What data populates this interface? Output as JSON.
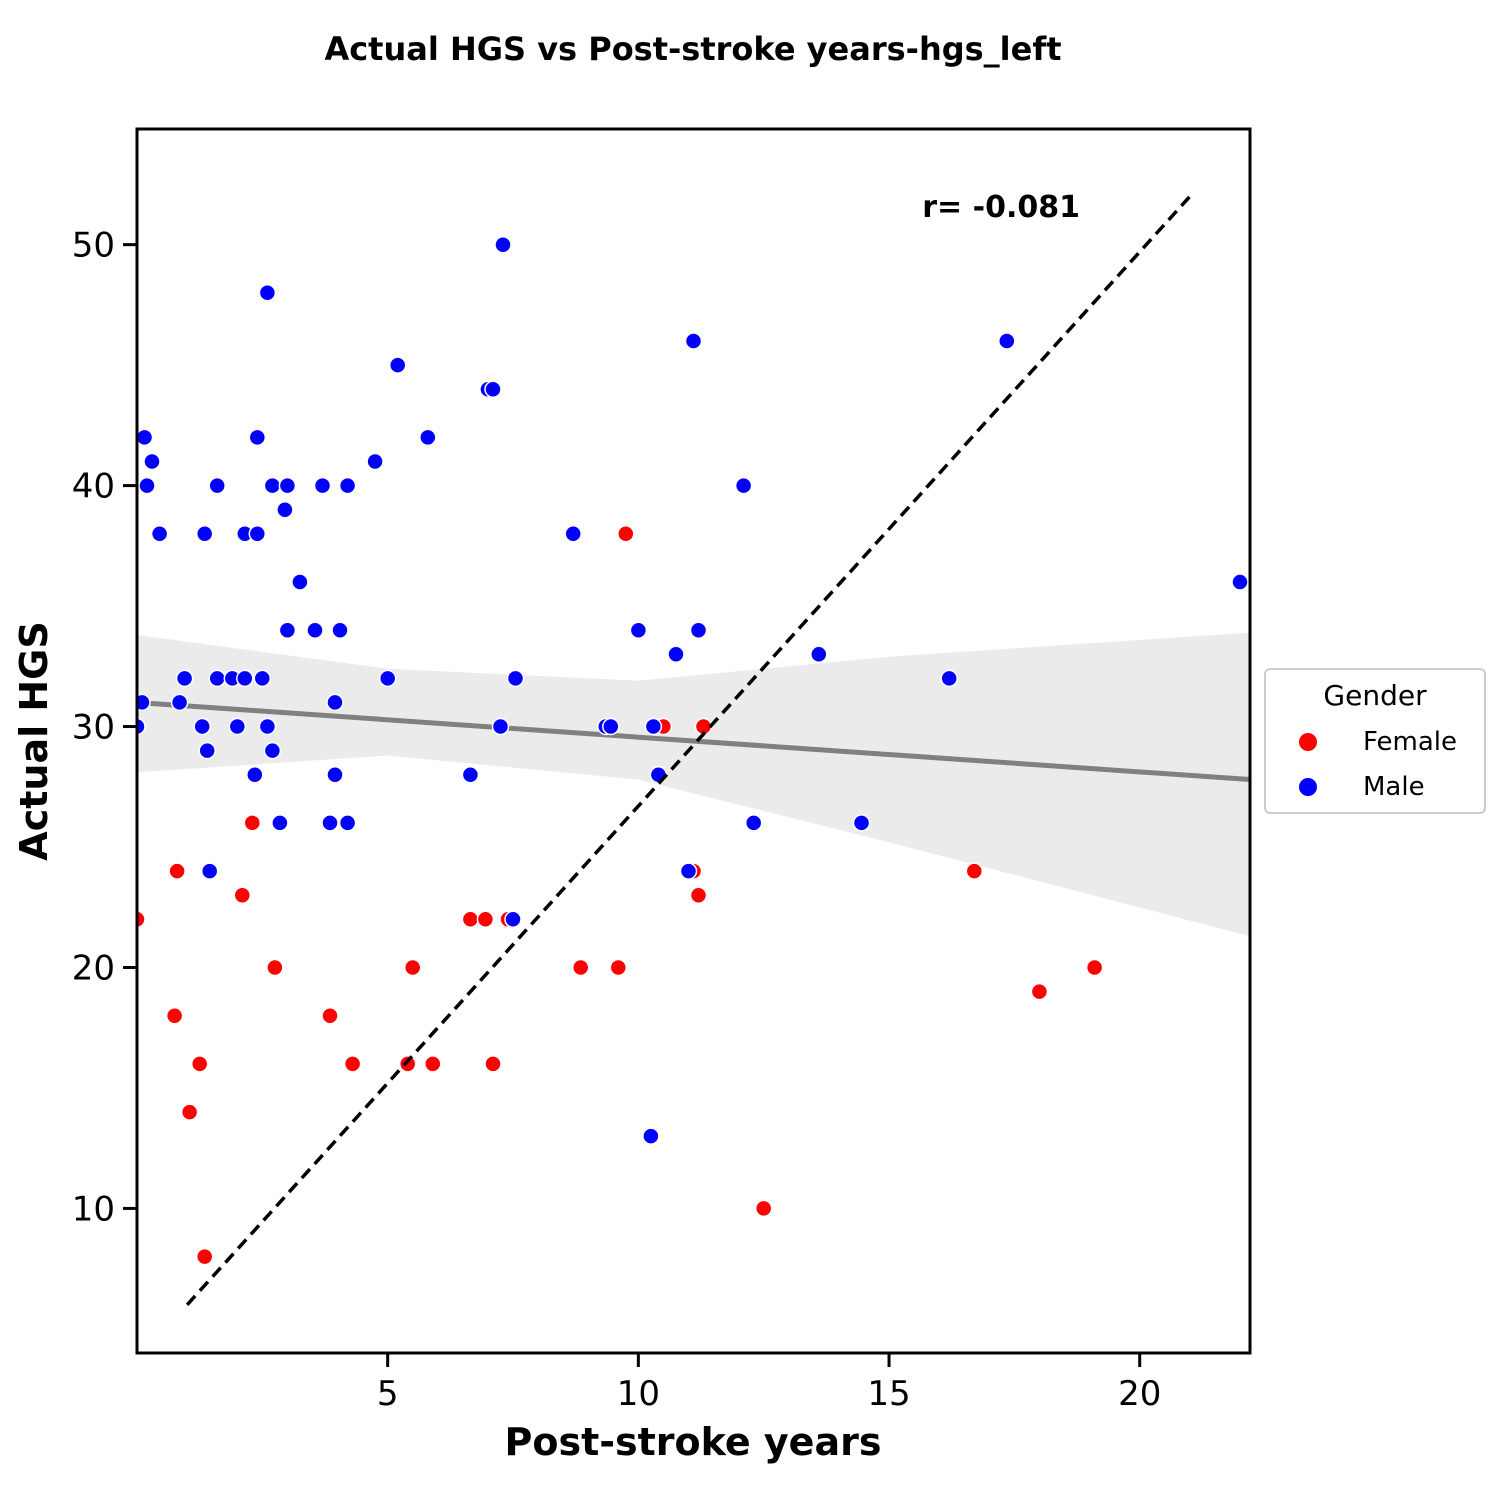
{
  "chart_data": {
    "type": "scatter",
    "title": "Actual HGS vs Post-stroke years-hgs_left",
    "xlabel": "Post-stroke years",
    "ylabel": "Actual HGS",
    "xlim": [
      0,
      22.2
    ],
    "ylim": [
      4,
      54.8
    ],
    "xticks": [
      5,
      10,
      15,
      20
    ],
    "yticks": [
      10,
      20,
      30,
      40,
      50
    ],
    "grid": false,
    "legend": {
      "title": "Gender",
      "placement": "right-outside",
      "entries": [
        "Female",
        "Male"
      ]
    },
    "colors": {
      "Female": "#ff0000",
      "Male": "#0000ff",
      "regression": "#808080",
      "ci_band": "#ebebeb",
      "identity": "#000000"
    },
    "annotation": "r= -0.081",
    "series": [
      {
        "name": "Female",
        "points": [
          [
            0.0,
            22
          ],
          [
            0.8,
            24
          ],
          [
            0.75,
            18
          ],
          [
            1.25,
            16
          ],
          [
            1.05,
            14
          ],
          [
            1.35,
            8
          ],
          [
            2.1,
            23
          ],
          [
            2.3,
            26
          ],
          [
            2.75,
            20
          ],
          [
            3.85,
            18
          ],
          [
            4.3,
            16
          ],
          [
            5.4,
            16
          ],
          [
            5.5,
            20
          ],
          [
            5.9,
            16
          ],
          [
            6.65,
            22
          ],
          [
            6.95,
            22
          ],
          [
            7.4,
            22
          ],
          [
            7.1,
            16
          ],
          [
            8.85,
            20
          ],
          [
            9.6,
            20
          ],
          [
            9.75,
            38
          ],
          [
            10.5,
            30
          ],
          [
            11.1,
            24
          ],
          [
            11.2,
            23
          ],
          [
            11.3,
            30
          ],
          [
            12.5,
            10
          ],
          [
            16.7,
            24
          ],
          [
            18.0,
            19
          ],
          [
            19.1,
            20
          ]
        ]
      },
      {
        "name": "Male",
        "points": [
          [
            0.0,
            30
          ],
          [
            0.1,
            31
          ],
          [
            0.15,
            42
          ],
          [
            0.2,
            40
          ],
          [
            0.3,
            41
          ],
          [
            0.45,
            38
          ],
          [
            0.85,
            31
          ],
          [
            0.95,
            32
          ],
          [
            1.3,
            30
          ],
          [
            1.35,
            38
          ],
          [
            1.4,
            29
          ],
          [
            1.45,
            24
          ],
          [
            1.6,
            40
          ],
          [
            1.6,
            32
          ],
          [
            1.9,
            32
          ],
          [
            2.0,
            30
          ],
          [
            2.15,
            38
          ],
          [
            2.15,
            32
          ],
          [
            2.35,
            28
          ],
          [
            2.4,
            38
          ],
          [
            2.4,
            42
          ],
          [
            2.5,
            32
          ],
          [
            2.6,
            48
          ],
          [
            2.6,
            30
          ],
          [
            2.7,
            29
          ],
          [
            2.7,
            40
          ],
          [
            2.85,
            26
          ],
          [
            2.95,
            39
          ],
          [
            3.0,
            34
          ],
          [
            3.0,
            40
          ],
          [
            3.25,
            36
          ],
          [
            3.55,
            34
          ],
          [
            3.7,
            40
          ],
          [
            3.85,
            26
          ],
          [
            3.95,
            31
          ],
          [
            3.95,
            28
          ],
          [
            4.05,
            34
          ],
          [
            4.2,
            40
          ],
          [
            4.2,
            26
          ],
          [
            4.75,
            41
          ],
          [
            5.0,
            32
          ],
          [
            5.2,
            45
          ],
          [
            5.8,
            42
          ],
          [
            6.65,
            28
          ],
          [
            7.0,
            44
          ],
          [
            7.1,
            44
          ],
          [
            7.25,
            30
          ],
          [
            7.3,
            50
          ],
          [
            7.5,
            22
          ],
          [
            7.55,
            32
          ],
          [
            8.7,
            38
          ],
          [
            9.35,
            30
          ],
          [
            9.45,
            30
          ],
          [
            10.0,
            34
          ],
          [
            10.25,
            13
          ],
          [
            10.3,
            30
          ],
          [
            10.4,
            28
          ],
          [
            10.75,
            33
          ],
          [
            11.0,
            24
          ],
          [
            11.1,
            46
          ],
          [
            11.2,
            34
          ],
          [
            12.1,
            40
          ],
          [
            12.3,
            26
          ],
          [
            13.6,
            33
          ],
          [
            14.45,
            26
          ],
          [
            16.2,
            32
          ],
          [
            17.35,
            46
          ],
          [
            22.0,
            36
          ]
        ]
      }
    ],
    "regression": {
      "x": [
        0,
        22.2
      ],
      "y": [
        31.0,
        27.8
      ],
      "ci_lower": [
        [
          0,
          28.1
        ],
        [
          5,
          28.8
        ],
        [
          10,
          27.8
        ],
        [
          15,
          25.2
        ],
        [
          22.2,
          21.3
        ]
      ],
      "ci_upper": [
        [
          0,
          33.8
        ],
        [
          5,
          32.4
        ],
        [
          10,
          31.9
        ],
        [
          15,
          32.9
        ],
        [
          22.2,
          33.9
        ]
      ]
    },
    "identity_line": {
      "x": [
        1.0,
        21.0
      ],
      "y": [
        6.0,
        52.0
      ]
    }
  }
}
